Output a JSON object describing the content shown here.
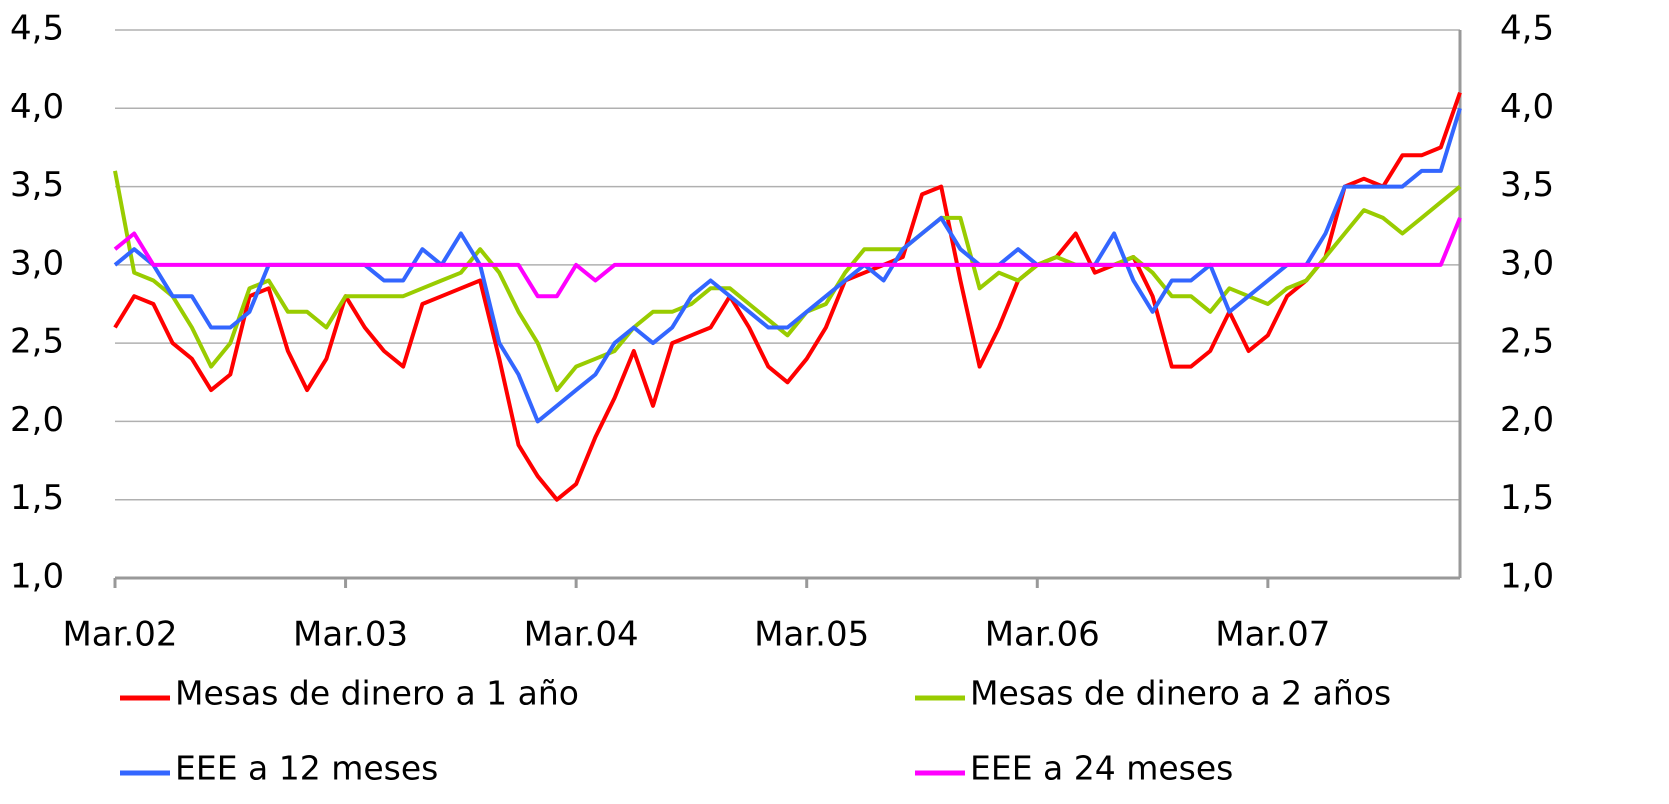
{
  "chart_data": {
    "type": "line",
    "categories": [
      "Mar.02",
      null,
      null,
      null,
      null,
      null,
      null,
      null,
      null,
      null,
      null,
      null,
      "Mar.03",
      null,
      null,
      null,
      null,
      null,
      null,
      null,
      null,
      null,
      null,
      null,
      "Mar.04",
      null,
      null,
      null,
      null,
      null,
      null,
      null,
      null,
      null,
      null,
      null,
      "Mar.05",
      null,
      null,
      null,
      null,
      null,
      null,
      null,
      null,
      null,
      null,
      null,
      "Mar.06",
      null,
      null,
      null,
      null,
      null,
      null,
      null,
      null,
      null,
      null,
      null,
      "Mar.07",
      null,
      null,
      null,
      null,
      null,
      null,
      null,
      null,
      null,
      null
    ],
    "series": [
      {
        "name": "Mesas de dinero a 1 año",
        "color": "#ff0000",
        "values": [
          2.6,
          2.8,
          2.75,
          2.5,
          2.4,
          2.2,
          2.3,
          2.8,
          2.85,
          2.45,
          2.2,
          2.4,
          2.8,
          2.6,
          2.45,
          2.35,
          2.75,
          2.8,
          2.85,
          2.9,
          2.4,
          1.85,
          1.65,
          1.5,
          1.6,
          1.9,
          2.15,
          2.45,
          2.1,
          2.5,
          2.55,
          2.6,
          2.8,
          2.6,
          2.35,
          2.25,
          2.4,
          2.6,
          2.9,
          2.95,
          3.0,
          3.05,
          3.45,
          3.5,
          2.9,
          2.35,
          2.6,
          2.9,
          3.0,
          3.05,
          3.2,
          2.95,
          3.0,
          3.05,
          2.8,
          2.35,
          2.35,
          2.45,
          2.7,
          2.45,
          2.55,
          2.8,
          2.9,
          3.05,
          3.5,
          3.55,
          3.5,
          3.7,
          3.7,
          3.75,
          4.1
        ]
      },
      {
        "name": "Mesas de dinero a 2 años",
        "color": "#99cc00",
        "values": [
          3.6,
          2.95,
          2.9,
          2.8,
          2.6,
          2.35,
          2.5,
          2.85,
          2.9,
          2.7,
          2.7,
          2.6,
          2.8,
          2.8,
          2.8,
          2.8,
          2.85,
          2.9,
          2.95,
          3.1,
          2.95,
          2.7,
          2.5,
          2.2,
          2.35,
          2.4,
          2.45,
          2.6,
          2.7,
          2.7,
          2.75,
          2.85,
          2.85,
          2.75,
          2.65,
          2.55,
          2.7,
          2.75,
          2.95,
          3.1,
          3.1,
          3.1,
          3.2,
          3.3,
          3.3,
          2.85,
          2.95,
          2.9,
          3.0,
          3.05,
          3.0,
          3.0,
          3.0,
          3.05,
          2.95,
          2.8,
          2.8,
          2.7,
          2.85,
          2.8,
          2.75,
          2.85,
          2.9,
          3.05,
          3.2,
          3.35,
          3.3,
          3.2,
          3.3,
          3.4,
          3.5
        ]
      },
      {
        "name": "EEE a 12 meses",
        "color": "#3366ff",
        "values": [
          3.0,
          3.1,
          3.0,
          2.8,
          2.8,
          2.6,
          2.6,
          2.7,
          3.0,
          3.0,
          3.0,
          3.0,
          3.0,
          3.0,
          2.9,
          2.9,
          3.1,
          3.0,
          3.2,
          3.0,
          2.5,
          2.3,
          2.0,
          2.1,
          2.2,
          2.3,
          2.5,
          2.6,
          2.5,
          2.6,
          2.8,
          2.9,
          2.8,
          2.7,
          2.6,
          2.6,
          2.7,
          2.8,
          2.9,
          3.0,
          2.9,
          3.1,
          3.2,
          3.3,
          3.1,
          3.0,
          3.0,
          3.1,
          3.0,
          3.0,
          3.0,
          3.0,
          3.2,
          2.9,
          2.7,
          2.9,
          2.9,
          3.0,
          2.7,
          2.8,
          2.9,
          3.0,
          3.0,
          3.2,
          3.5,
          3.5,
          3.5,
          3.5,
          3.6,
          3.6,
          4.0
        ]
      },
      {
        "name": "EEE a 24 meses",
        "color": "#ff00ff",
        "values": [
          3.1,
          3.2,
          3.0,
          3.0,
          3.0,
          3.0,
          3.0,
          3.0,
          3.0,
          3.0,
          3.0,
          3.0,
          3.0,
          3.0,
          3.0,
          3.0,
          3.0,
          3.0,
          3.0,
          3.0,
          3.0,
          3.0,
          2.8,
          2.8,
          3.0,
          2.9,
          3.0,
          3.0,
          3.0,
          3.0,
          3.0,
          3.0,
          3.0,
          3.0,
          3.0,
          3.0,
          3.0,
          3.0,
          3.0,
          3.0,
          3.0,
          3.0,
          3.0,
          3.0,
          3.0,
          3.0,
          3.0,
          3.0,
          3.0,
          3.0,
          3.0,
          3.0,
          3.0,
          3.0,
          3.0,
          3.0,
          3.0,
          3.0,
          3.0,
          3.0,
          3.0,
          3.0,
          3.0,
          3.0,
          3.0,
          3.0,
          3.0,
          3.0,
          3.0,
          3.0,
          3.3
        ]
      }
    ],
    "ylim": [
      1,
      4.5
    ],
    "yticks": [
      {
        "value": 1,
        "label": "1,0"
      },
      {
        "value": 1.5,
        "label": "1,5"
      },
      {
        "value": 2,
        "label": "2,0"
      },
      {
        "value": 2.5,
        "label": "2,5"
      },
      {
        "value": 3,
        "label": "3,0"
      },
      {
        "value": 3.5,
        "label": "3,5"
      },
      {
        "value": 4,
        "label": "4,0"
      },
      {
        "value": 4.5,
        "label": "4,5"
      }
    ],
    "y2lim": [
      1,
      4.5
    ],
    "y2ticks": [
      {
        "value": 1,
        "label": "1,0"
      },
      {
        "value": 1.5,
        "label": "1,5"
      },
      {
        "value": 2,
        "label": "2,0"
      },
      {
        "value": 2.5,
        "label": "2,5"
      },
      {
        "value": 3,
        "label": "3,0"
      },
      {
        "value": 3.5,
        "label": "3,5"
      },
      {
        "value": 4,
        "label": "4,0"
      },
      {
        "value": 4.5,
        "label": "4,5"
      }
    ],
    "grid": true,
    "legend": "bottom"
  }
}
